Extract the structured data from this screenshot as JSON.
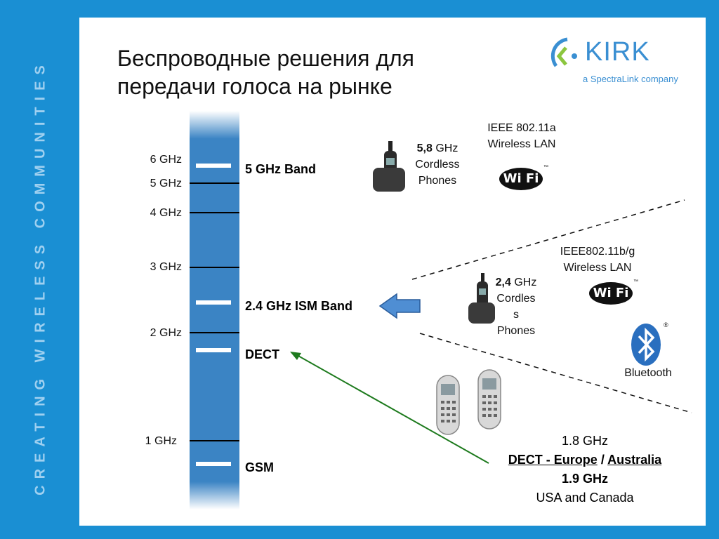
{
  "side_text": "CREATING WIRELESS COMMUNITIES",
  "title": {
    "line1": "Беспроводные решения для",
    "line2": "передачи голоса на рынке"
  },
  "logo": {
    "word": "KIRK",
    "tagline": "a SpectraLink company",
    "mark_icon": "kirk-logo-icon"
  },
  "frequency_ticks": [
    "6 GHz",
    "5 GHz",
    "4 GHz",
    "3 GHz",
    "2 GHz",
    "1 GHz"
  ],
  "bands": {
    "five_ghz": "5 GHz Band",
    "ism": "2.4 GHz ISM Band",
    "dect": "DECT",
    "gsm": "GSM"
  },
  "phones_58": {
    "freq": "5,8",
    "unit": " GHz",
    "line2": "Cordless",
    "line3": "Phones"
  },
  "wlan_a": {
    "line1": "IEEE 802.11a",
    "line2": "Wireless LAN"
  },
  "wlan_bg": {
    "line1": "IEEE802.11b/g",
    "line2": "Wireless LAN"
  },
  "phones_24": {
    "freq": "2,4",
    "unit": " GHz",
    "line2": "Cordles",
    "line3": "s",
    "line4": "Phones"
  },
  "wifi_logo": {
    "text": "Wi Fi",
    "tm": "™"
  },
  "bluetooth": {
    "label": "Bluetooth",
    "reg": "®"
  },
  "dect_info": {
    "line1": "1.8 GHz",
    "line2a": "DECT - Europe",
    "line2sep": " / ",
    "line2b": "Australia",
    "line3": "1.9 GHz",
    "line4": "USA and Canada"
  },
  "colors": {
    "background": "#1a8fd3",
    "band": "#3b84c4",
    "arrow_fill": "#4f8ed3",
    "green_arrow": "#1d7a1d",
    "bluetooth": "#2a6fbf"
  }
}
